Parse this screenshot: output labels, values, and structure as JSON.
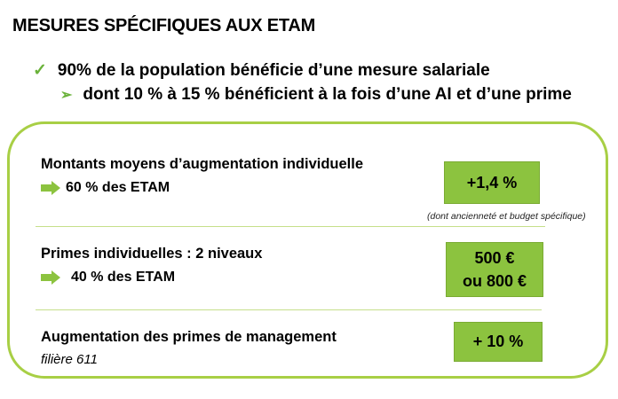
{
  "title": "MESURES SPÉCIFIQUES AUX ETAM",
  "bullet1": {
    "icon": "check-icon",
    "text": "90% de la population bénéficie d’une mesure salariale"
  },
  "bullet2": {
    "icon": "arrow-icon",
    "text": "dont 10 % à 15 % bénéficient à la fois d’une AI et d’une prime"
  },
  "rows": [
    {
      "label": "Montants moyens d’augmentation individuelle",
      "sub": "60 % des ETAM",
      "value": "+1,4 %",
      "note": "(dont ancienneté et budget spécifique)"
    },
    {
      "label": "Primes individuelles : 2 niveaux",
      "sub": "40 % des ETAM",
      "value_line1": "500 €",
      "value_line2": "ou 800 €"
    },
    {
      "label": "Augmentation des primes de management",
      "sub": "filière 611",
      "value": "+ 10 %"
    }
  ],
  "colors": {
    "accent": "#8cc33f",
    "border": "#a8cf45",
    "check": "#6ab23a"
  }
}
